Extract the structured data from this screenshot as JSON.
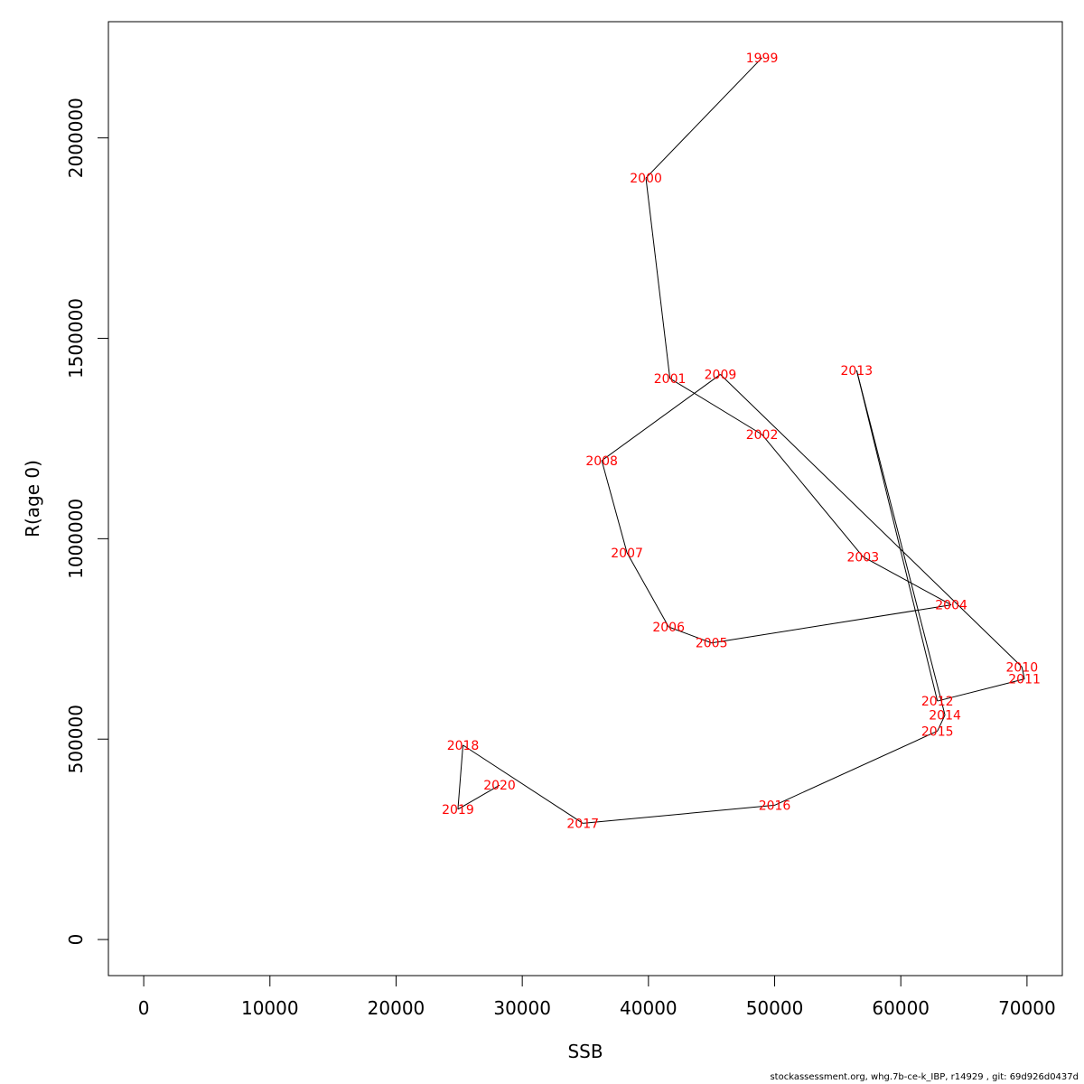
{
  "chart_data": {
    "type": "line",
    "xlabel": "SSB",
    "ylabel": "R(age 0)",
    "xlim": [
      -2800,
      72800
    ],
    "ylim": [
      -90000,
      2290000
    ],
    "xticks": [
      0,
      10000,
      20000,
      30000,
      40000,
      50000,
      60000,
      70000
    ],
    "yticks": [
      0,
      500000,
      1000000,
      1500000,
      2000000
    ],
    "grid": false,
    "line_color": "#000000",
    "label_color": "#ff0000",
    "points": [
      {
        "year": "1999",
        "x": 49000,
        "y": 2200000
      },
      {
        "year": "2000",
        "x": 39800,
        "y": 1900000
      },
      {
        "year": "2001",
        "x": 41700,
        "y": 1400000
      },
      {
        "year": "2002",
        "x": 49000,
        "y": 1260000
      },
      {
        "year": "2003",
        "x": 57000,
        "y": 955000
      },
      {
        "year": "2004",
        "x": 64000,
        "y": 835000
      },
      {
        "year": "2005",
        "x": 45000,
        "y": 740000
      },
      {
        "year": "2006",
        "x": 41600,
        "y": 780000
      },
      {
        "year": "2007",
        "x": 38300,
        "y": 965000
      },
      {
        "year": "2008",
        "x": 36300,
        "y": 1195000
      },
      {
        "year": "2009",
        "x": 45700,
        "y": 1410000
      },
      {
        "year": "2010",
        "x": 69600,
        "y": 680000
      },
      {
        "year": "2011",
        "x": 69800,
        "y": 650000
      },
      {
        "year": "2012",
        "x": 62900,
        "y": 595000
      },
      {
        "year": "2013",
        "x": 56500,
        "y": 1420000
      },
      {
        "year": "2014",
        "x": 63500,
        "y": 560000
      },
      {
        "year": "2015",
        "x": 62900,
        "y": 520000
      },
      {
        "year": "2016",
        "x": 50000,
        "y": 335000
      },
      {
        "year": "2017",
        "x": 34800,
        "y": 290000
      },
      {
        "year": "2018",
        "x": 25300,
        "y": 485000
      },
      {
        "year": "2019",
        "x": 24900,
        "y": 325000
      },
      {
        "year": "2020",
        "x": 28200,
        "y": 385000
      }
    ]
  },
  "footer": {
    "text": "stockassessment.org, whg.7b-ce-k_IBP, r14929 , git: 69d926d0437d"
  }
}
